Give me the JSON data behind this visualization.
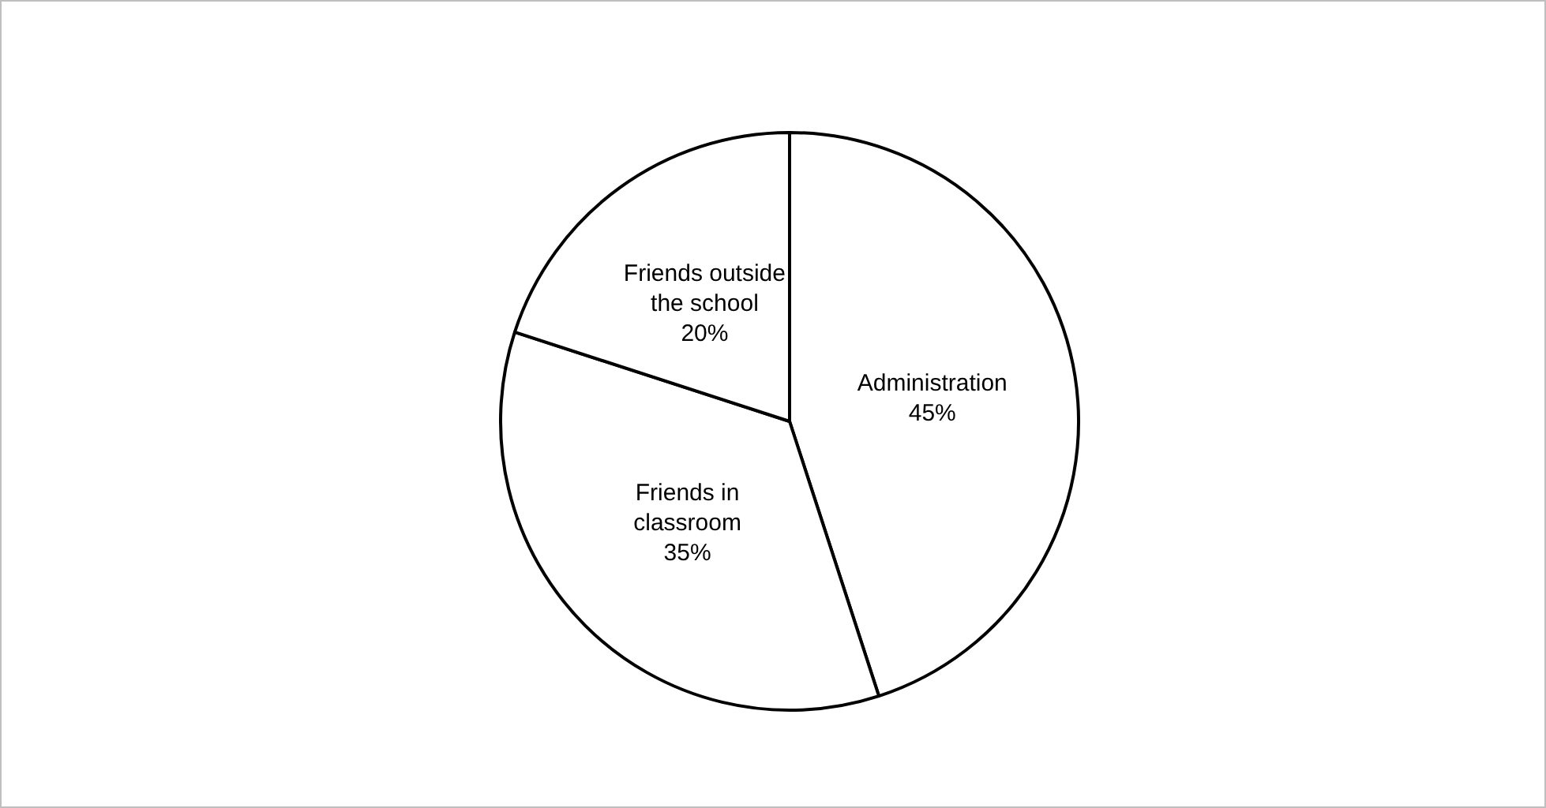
{
  "chart_data": {
    "type": "pie",
    "categories": [
      "Administration",
      "Friends in classroom",
      "Friends outside the school"
    ],
    "values": [
      45,
      35,
      20
    ],
    "colors": [
      "#ffffff",
      "#ffffff",
      "#ffffff"
    ],
    "value_labels": [
      "45%",
      "35%",
      "20%"
    ],
    "legend": false
  }
}
